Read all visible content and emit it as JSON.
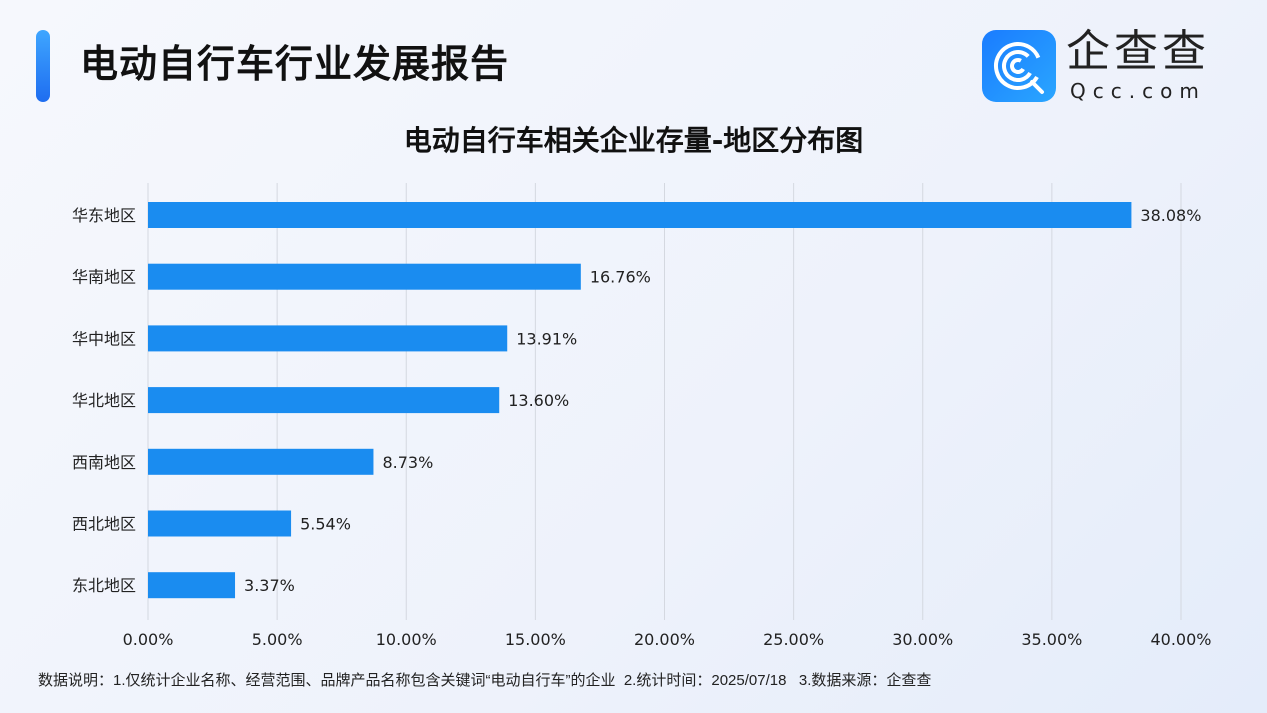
{
  "header": {
    "title": "电动自行车行业发展报告",
    "logo_cn": "企查查",
    "logo_en": "Qcc.com"
  },
  "chart_data": {
    "type": "bar",
    "orientation": "horizontal",
    "title": "电动自行车相关企业存量-地区分布图",
    "categories": [
      "华东地区",
      "华南地区",
      "华中地区",
      "华北地区",
      "西南地区",
      "西北地区",
      "东北地区"
    ],
    "values": [
      38.08,
      16.76,
      13.91,
      13.6,
      8.73,
      5.54,
      3.37
    ],
    "value_labels": [
      "38.08%",
      "16.76%",
      "13.91%",
      "13.60%",
      "8.73%",
      "5.54%",
      "3.37%"
    ],
    "xlim": [
      0,
      40
    ],
    "xticks": [
      "0.00%",
      "5.00%",
      "10.00%",
      "15.00%",
      "20.00%",
      "25.00%",
      "30.00%",
      "35.00%",
      "40.00%"
    ],
    "grid": true,
    "bar_color": "#1a8cf0"
  },
  "footer": {
    "note": "数据说明：1.仅统计企业名称、经营范围、品牌产品名称包含关键词“电动自行车”的企业  2.统计时间：2025/07/18   3.数据来源：企查查"
  }
}
